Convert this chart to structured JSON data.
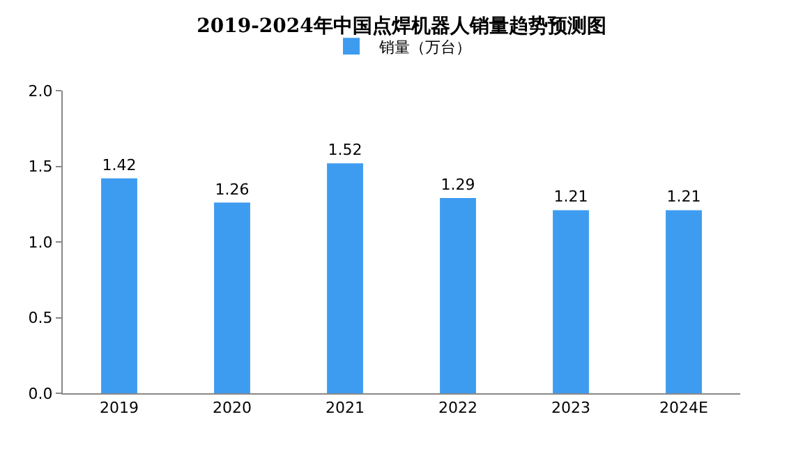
{
  "chart_data": {
    "type": "bar",
    "title": "2019-2024年中国点焊机器人销量趋势预测图",
    "categories": [
      "2019",
      "2020",
      "2021",
      "2022",
      "2023",
      "2024E"
    ],
    "series": [
      {
        "name": "销量（万台）",
        "color": "#3e9cf0",
        "values": [
          1.42,
          1.26,
          1.52,
          1.29,
          1.21,
          1.21
        ]
      }
    ],
    "ylim": [
      0,
      2
    ],
    "yticks": [
      {
        "value": 0,
        "label": "0.0"
      },
      {
        "value": 0.5,
        "label": "0.5"
      },
      {
        "value": 1,
        "label": "1.0"
      },
      {
        "value": 1.5,
        "label": "1.5"
      },
      {
        "value": 2,
        "label": "2.0"
      }
    ],
    "grid": false,
    "legend": "top",
    "data_labels": true
  }
}
